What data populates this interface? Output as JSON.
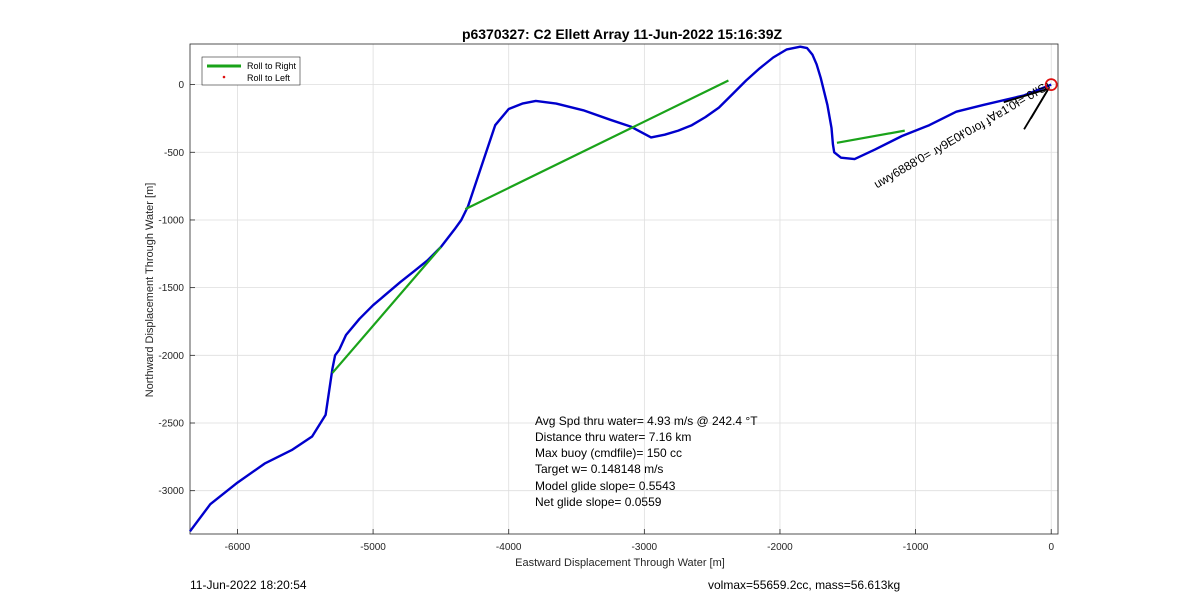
{
  "chart_data": {
    "type": "line",
    "title": "p6370327: C2 Ellett Array 11-Jun-2022 15:16:39Z",
    "xlabel": "Eastward Displacement Through Water [m]",
    "ylabel": "Northward Displacement Through Water [m]",
    "xlim": [
      -6350,
      50
    ],
    "ylim": [
      -3320,
      300
    ],
    "xticks": [
      -6000,
      -5000,
      -4000,
      -3000,
      -2000,
      -1000,
      0
    ],
    "yticks": [
      -3000,
      -2500,
      -2000,
      -1500,
      -1000,
      -500,
      0
    ],
    "grid": true,
    "legend": {
      "placement": "top-left",
      "entries": [
        "Roll to Right",
        "Roll to Left"
      ]
    },
    "series": [
      {
        "name": "track",
        "color": "#0000cc",
        "x": [
          0,
          -200,
          -500,
          -700,
          -900,
          -1100,
          -1300,
          -1450,
          -1550,
          -1600,
          -1610,
          -1620,
          -1650,
          -1700,
          -1730,
          -1760,
          -1800,
          -1850,
          -1950,
          -2050,
          -2150,
          -2250,
          -2350,
          -2450,
          -2550,
          -2650,
          -2750,
          -2850,
          -2950,
          -3100,
          -3250,
          -3450,
          -3650,
          -3800,
          -3900,
          -4000,
          -4100,
          -4200,
          -4300,
          -4350,
          -4400,
          -4500,
          -4600,
          -4700,
          -4800,
          -5000,
          -5100,
          -5200,
          -5250,
          -5280,
          -5300,
          -5350,
          -5450,
          -5600,
          -5800,
          -6000,
          -6200,
          -6350
        ],
        "y": [
          0,
          -80,
          -150,
          -200,
          -300,
          -380,
          -480,
          -550,
          -540,
          -500,
          -440,
          -320,
          -150,
          50,
          150,
          220,
          270,
          280,
          260,
          200,
          120,
          30,
          -70,
          -170,
          -240,
          -300,
          -340,
          -370,
          -390,
          -310,
          -260,
          -190,
          -140,
          -120,
          -140,
          -180,
          -300,
          -600,
          -900,
          -1000,
          -1070,
          -1200,
          -1300,
          -1380,
          -1460,
          -1630,
          -1730,
          -1850,
          -1960,
          -2000,
          -2100,
          -2440,
          -2600,
          -2700,
          -2800,
          -2940,
          -3100,
          -3300
        ]
      },
      {
        "name": "Roll to Right",
        "color": "#1aa31a",
        "segments": [
          [
            [
              -2380,
              30
            ],
            [
              -4320,
              -920
            ]
          ],
          [
            [
              -1580,
              -430
            ],
            [
              -1080,
              -340
            ]
          ],
          [
            [
              -4500,
              -1200
            ],
            [
              -5300,
              -2130
            ]
          ]
        ]
      }
    ],
    "markers": {
      "end_circle": {
        "x": 0,
        "y": 0,
        "color": "#dd1111"
      },
      "rays": [
        {
          "x1": -20,
          "y1": -30,
          "x2": -350,
          "y2": -130
        },
        {
          "x1": -20,
          "y1": -30,
          "x2": -200,
          "y2": -330
        },
        {
          "x1": -20,
          "y1": -30,
          "x2": -150,
          "y2": -250
        }
      ]
    },
    "rotated_annotation": "uwy6888'0= ɹy9E0ɬ'0ɹoɟ ɟ∀ɐ1'0ɬ= 0ɬ'Sɹ"
  },
  "annotations": [
    "Avg Spd thru water=  4.93 m/s @ 242.4 °T",
    "Distance thru water=  7.16 km",
    "Max buoy (cmdfile)= 150 cc",
    "Target w= 0.148148 m/s",
    "Model glide slope= 0.5543",
    "Net glide slope= 0.0559"
  ],
  "footer": {
    "timestamp": "11-Jun-2022 18:20:54",
    "stats": "volmax=55659.2cc, mass=56.613kg"
  },
  "colors": {
    "track": "#0000cc",
    "roll_right": "#1aa31a",
    "roll_left": "#dd1111"
  }
}
